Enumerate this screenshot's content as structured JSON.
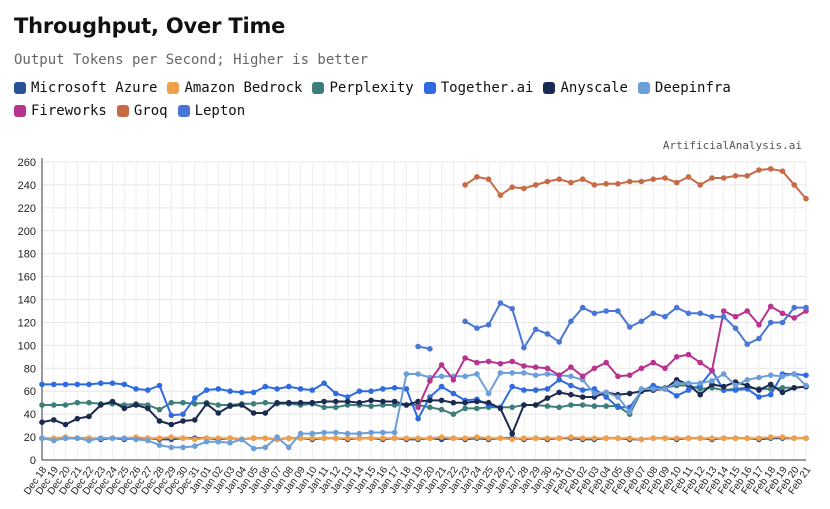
{
  "chart_data": {
    "type": "line",
    "title": "Throughput, Over Time",
    "subtitle": "Output Tokens per Second; Higher is better",
    "watermark": "ArtificialAnalysis.ai",
    "legend_placement": "top-left",
    "grid": true,
    "ylim": [
      0,
      260
    ],
    "yticks": [
      0,
      20,
      40,
      60,
      80,
      100,
      120,
      140,
      160,
      180,
      200,
      220,
      240,
      260
    ],
    "categories": [
      "Dec 18",
      "Dec 19",
      "Dec 20",
      "Dec 21",
      "Dec 22",
      "Dec 23",
      "Dec 24",
      "Dec 25",
      "Dec 26",
      "Dec 27",
      "Dec 28",
      "Dec 29",
      "Dec 30",
      "Dec 31",
      "Jan 01",
      "Jan 02",
      "Jan 03",
      "Jan 04",
      "Jan 05",
      "Jan 06",
      "Jan 07",
      "Jan 08",
      "Jan 09",
      "Jan 10",
      "Jan 11",
      "Jan 12",
      "Jan 13",
      "Jan 14",
      "Jan 15",
      "Jan 16",
      "Jan 17",
      "Jan 18",
      "Jan 19",
      "Jan 20",
      "Jan 21",
      "Jan 22",
      "Jan 23",
      "Jan 24",
      "Jan 25",
      "Jan 26",
      "Jan 27",
      "Jan 28",
      "Jan 29",
      "Jan 30",
      "Jan 31",
      "Feb 01",
      "Feb 02",
      "Feb 03",
      "Feb 04",
      "Feb 05",
      "Feb 06",
      "Feb 07",
      "Feb 08",
      "Feb 09",
      "Feb 10",
      "Feb 11",
      "Feb 12",
      "Feb 13",
      "Feb 14",
      "Feb 15",
      "Feb 16",
      "Feb 17",
      "Feb 18",
      "Feb 19",
      "Feb 20",
      "Feb 21"
    ],
    "series": [
      {
        "name": "Microsoft Azure",
        "color": "#2a5298",
        "values": [
          19,
          18,
          19,
          19,
          19,
          18,
          19,
          18,
          19,
          19,
          18,
          18,
          19,
          19,
          19,
          18,
          19,
          18,
          19,
          19,
          18,
          19,
          19,
          18,
          19,
          19,
          18,
          19,
          19,
          18,
          19,
          18,
          18,
          19,
          18,
          19,
          18,
          19,
          18,
          19,
          19,
          18,
          19,
          18,
          19,
          19,
          18,
          18,
          19,
          19,
          18,
          18,
          19,
          19,
          18,
          19,
          19,
          18,
          19,
          19,
          19,
          18,
          19,
          19,
          19,
          19
        ]
      },
      {
        "name": "Amazon Bedrock",
        "color": "#f0a04b",
        "values": [
          19,
          19,
          20,
          19,
          19,
          19,
          19,
          19,
          20,
          19,
          19,
          20,
          19,
          18,
          19,
          19,
          19,
          18,
          19,
          19,
          18,
          19,
          19,
          19,
          19,
          19,
          19,
          19,
          19,
          19,
          19,
          19,
          19,
          19,
          20,
          19,
          19,
          20,
          19,
          19,
          18,
          19,
          19,
          19,
          19,
          20,
          19,
          19,
          19,
          19,
          19,
          18,
          19,
          19,
          19,
          19,
          19,
          19,
          19,
          19,
          19,
          19,
          20,
          20,
          19,
          19
        ]
      },
      {
        "name": "Perplexity",
        "color": "#3d7e7a",
        "values": [
          48,
          48,
          48,
          50,
          50,
          49,
          49,
          48,
          49,
          48,
          44,
          50,
          50,
          49,
          50,
          48,
          48,
          49,
          49,
          50,
          49,
          49,
          48,
          49,
          46,
          46,
          48,
          48,
          47,
          48,
          48,
          48,
          48,
          46,
          44,
          40,
          45,
          45,
          46,
          46,
          46,
          48,
          48,
          47,
          46,
          48,
          48,
          47,
          47,
          47,
          40,
          60,
          63,
          63,
          65,
          65,
          62,
          63,
          61,
          62,
          63,
          62,
          62,
          63,
          63,
          64
        ]
      },
      {
        "name": "Together.ai",
        "color": "#2f6bdf",
        "values": [
          66,
          66,
          66,
          66,
          66,
          67,
          67,
          66,
          62,
          61,
          65,
          39,
          40,
          54,
          61,
          62,
          60,
          59,
          59,
          64,
          62,
          64,
          62,
          61,
          67,
          58,
          55,
          60,
          60,
          62,
          63,
          62,
          36,
          55,
          64,
          58,
          52,
          53,
          48,
          46,
          64,
          61,
          61,
          62,
          70,
          65,
          61,
          62,
          55,
          46,
          46,
          60,
          65,
          62,
          56,
          61,
          65,
          78,
          61,
          61,
          62,
          55,
          57,
          75,
          75,
          74
        ]
      },
      {
        "name": "Anyscale",
        "color": "#1b2a50",
        "values": [
          33,
          35,
          31,
          36,
          38,
          48,
          51,
          45,
          48,
          45,
          34,
          31,
          34,
          35,
          49,
          41,
          47,
          48,
          41,
          41,
          50,
          50,
          50,
          50,
          51,
          51,
          51,
          50,
          52,
          51,
          51,
          48,
          51,
          52,
          52,
          50,
          50,
          51,
          50,
          45,
          23,
          48,
          48,
          54,
          59,
          57,
          55,
          55,
          59,
          57,
          58,
          60,
          61,
          62,
          70,
          66,
          57,
          66,
          64,
          68,
          65,
          61,
          66,
          59,
          63,
          64
        ]
      },
      {
        "name": "Deepinfra",
        "color": "#6c9fd8",
        "values": [
          19,
          17,
          19,
          19,
          17,
          19,
          19,
          19,
          18,
          17,
          13,
          11,
          11,
          12,
          16,
          16,
          15,
          18,
          10,
          11,
          20,
          11,
          23,
          23,
          24,
          24,
          23,
          23,
          24,
          24,
          24,
          75,
          75,
          72,
          73,
          73,
          73,
          75,
          58,
          76,
          76,
          76,
          74,
          75,
          74,
          73,
          70,
          58,
          59,
          55,
          42,
          62,
          62,
          62,
          67,
          67,
          67,
          69,
          75,
          65,
          70,
          72,
          74,
          73,
          75,
          65
        ]
      },
      {
        "name": "Fireworks",
        "color": "#b8338f",
        "values": [
          null,
          null,
          null,
          null,
          null,
          null,
          null,
          null,
          null,
          null,
          null,
          null,
          null,
          null,
          null,
          null,
          null,
          null,
          null,
          null,
          null,
          null,
          null,
          null,
          null,
          null,
          null,
          null,
          null,
          null,
          null,
          null,
          46,
          69,
          83,
          70,
          89,
          85,
          86,
          84,
          86,
          82,
          81,
          80,
          74,
          81,
          73,
          80,
          85,
          73,
          74,
          80,
          85,
          80,
          90,
          92,
          85,
          78,
          130,
          125,
          130,
          118,
          134,
          128,
          124,
          130
        ]
      },
      {
        "name": "Groq",
        "color": "#c86a46",
        "values": [
          null,
          null,
          null,
          null,
          null,
          null,
          null,
          null,
          null,
          null,
          null,
          null,
          null,
          null,
          null,
          null,
          null,
          null,
          null,
          null,
          null,
          null,
          null,
          null,
          null,
          null,
          null,
          null,
          null,
          null,
          null,
          null,
          null,
          null,
          null,
          null,
          240,
          247,
          245,
          231,
          238,
          237,
          240,
          243,
          245,
          242,
          245,
          240,
          241,
          241,
          243,
          243,
          245,
          246,
          242,
          247,
          240,
          246,
          246,
          248,
          248,
          253,
          254,
          252,
          240,
          228
        ]
      },
      {
        "name": "Lepton",
        "color": "#4a77d6",
        "values": [
          null,
          null,
          null,
          null,
          null,
          null,
          null,
          null,
          null,
          null,
          null,
          null,
          null,
          null,
          null,
          null,
          null,
          null,
          null,
          null,
          null,
          null,
          null,
          null,
          null,
          null,
          null,
          null,
          null,
          null,
          null,
          null,
          99,
          97,
          null,
          null,
          121,
          115,
          118,
          137,
          132,
          98,
          114,
          110,
          103,
          121,
          133,
          128,
          130,
          130,
          116,
          121,
          128,
          125,
          133,
          128,
          128,
          125,
          125,
          115,
          101,
          106,
          120,
          120,
          133,
          133
        ]
      }
    ]
  }
}
